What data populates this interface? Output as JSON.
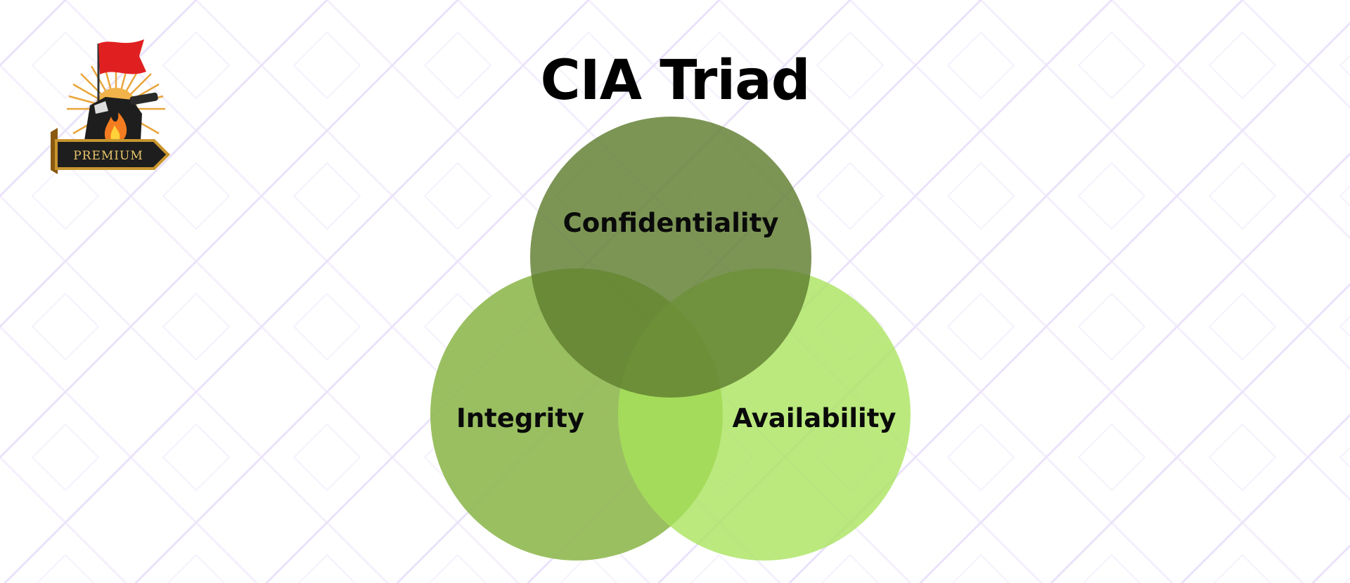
{
  "title": "CIA Triad",
  "diagram": {
    "circles": [
      {
        "id": "confidentiality",
        "label": "Confidentiality",
        "color": "#6b8a3a"
      },
      {
        "id": "integrity",
        "label": "Integrity",
        "color": "#8cb64b"
      },
      {
        "id": "availability",
        "label": "Availability",
        "color": "#a8e35a"
      }
    ]
  },
  "logo": {
    "badge_text": "PREMIUM",
    "flag_color": "#e02020",
    "flame_color": "#f47c20",
    "badge_color": "#1e1e1e",
    "gold_color": "#c9962e"
  },
  "colors": {
    "pattern_line": "#d9c9f5"
  }
}
